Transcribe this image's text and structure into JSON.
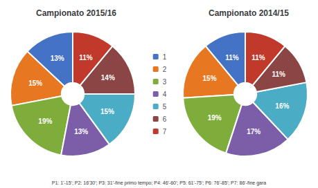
{
  "chart_data": [
    {
      "type": "pie",
      "title": "Campionato 2015/16",
      "categories": [
        "1",
        "2",
        "3",
        "4",
        "5",
        "6",
        "7"
      ],
      "values": [
        13,
        15,
        19,
        13,
        15,
        14,
        11
      ],
      "value_labels": [
        "13%",
        "15%",
        "19%",
        "13%",
        "15%",
        "14%",
        "11%"
      ],
      "colors": [
        "#4472c4",
        "#e87722",
        "#7fad3c",
        "#7b5ea7",
        "#4bacc6",
        "#8b4545",
        "#c0392b"
      ],
      "data_labels": true,
      "legend": "center",
      "annotations": [
        "P1: 1'-15'; P2: 16'30'; P3: 31'-fine primo tempo; P4: 46'-60'; P5: 61'-75'; P6: 76'-85'; P7: 86'-fine gara"
      ]
    },
    {
      "type": "pie",
      "title": "Campionato 2014/15",
      "categories": [
        "1",
        "2",
        "3",
        "4",
        "5",
        "6",
        "7"
      ],
      "values": [
        11,
        15,
        19,
        17,
        16,
        11,
        11
      ],
      "value_labels": [
        "11%",
        "15%",
        "19%",
        "17%",
        "16%",
        "11%",
        "11%"
      ],
      "colors": [
        "#4472c4",
        "#e87722",
        "#7fad3c",
        "#7b5ea7",
        "#4bacc6",
        "#8b4545",
        "#c0392b"
      ],
      "data_labels": true
    }
  ]
}
